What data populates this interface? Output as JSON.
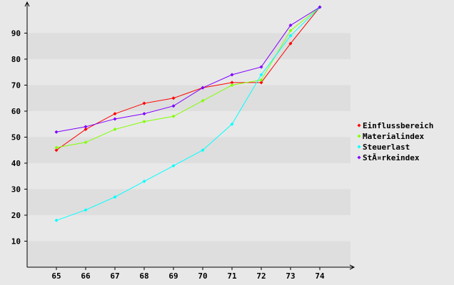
{
  "chart_data": {
    "type": "line",
    "title": "",
    "xlabel": "",
    "ylabel": "",
    "x": [
      65,
      66,
      67,
      68,
      69,
      70,
      71,
      72,
      73,
      74
    ],
    "y_ticks": [
      10,
      20,
      30,
      40,
      50,
      60,
      70,
      80,
      90
    ],
    "ylim": [
      0,
      100
    ],
    "grid": "horizontal alternating bands",
    "legend_position": "right",
    "series": [
      {
        "name": "Einflussbereich",
        "color": "#ff0000",
        "values": [
          45,
          53,
          59,
          63,
          65,
          69,
          71,
          71,
          86,
          100
        ]
      },
      {
        "name": "Materialindex",
        "color": "#80ff00",
        "values": [
          46,
          48,
          53,
          56,
          58,
          64,
          70,
          72,
          91,
          100
        ]
      },
      {
        "name": "Steuerlast",
        "color": "#00ffff",
        "values": [
          18,
          22,
          27,
          33,
          39,
          45,
          55,
          74,
          89,
          100
        ]
      },
      {
        "name": "StÃ¤rkeindex",
        "color": "#8000ff",
        "values": [
          52,
          54,
          57,
          59,
          62,
          69,
          74,
          77,
          93,
          100
        ]
      }
    ]
  }
}
